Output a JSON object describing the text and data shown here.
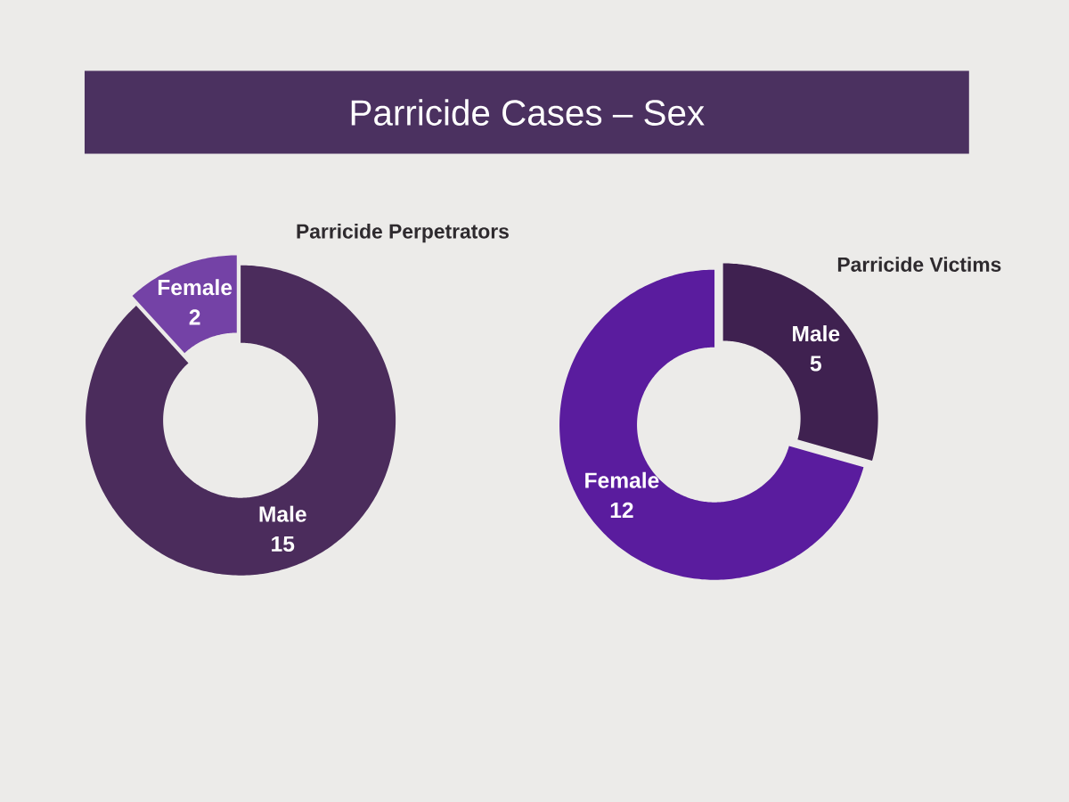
{
  "chart_data": [
    {
      "type": "other",
      "title": "Parricide Cases – Sex"
    },
    {
      "type": "donut",
      "title": "Parricide Perpetrators",
      "categories": [
        "Male",
        "Female"
      ],
      "values": [
        15,
        2
      ],
      "colors": [
        "#4b2c5c",
        "#7442a6"
      ],
      "data_labels": true
    },
    {
      "type": "donut",
      "title": "Parricide Victims",
      "categories": [
        "Male",
        "Female"
      ],
      "values": [
        5,
        12
      ],
      "colors": [
        "#3f2150",
        "#5a1c9e"
      ],
      "data_labels": true
    }
  ]
}
